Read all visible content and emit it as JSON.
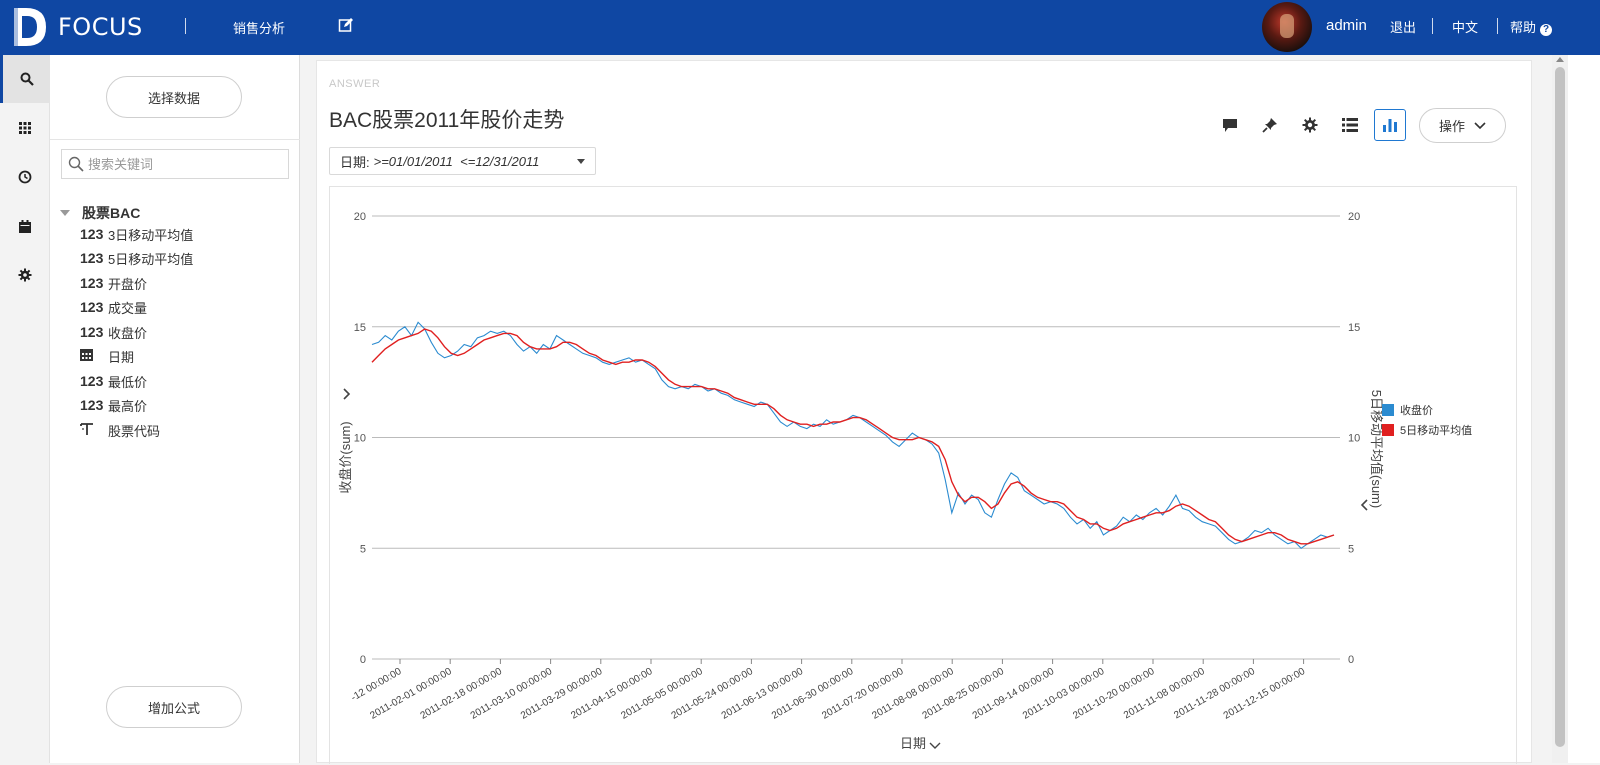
{
  "header": {
    "logo_text": "FOCUS",
    "nav_sales": "销售分析",
    "user": "admin",
    "logout": "退出",
    "language": "中文",
    "help": "帮助"
  },
  "sidebar": {
    "select_data": "选择数据",
    "search_placeholder": "搜索关键词",
    "group": "股票BAC",
    "fields": [
      {
        "type": "123",
        "name": "3日移动平均值"
      },
      {
        "type": "123",
        "name": "5日移动平均值"
      },
      {
        "type": "123",
        "name": "开盘价"
      },
      {
        "type": "123",
        "name": "成交量"
      },
      {
        "type": "123",
        "name": "收盘价"
      },
      {
        "type": "date",
        "name": "日期"
      },
      {
        "type": "123",
        "name": "最低价"
      },
      {
        "type": "123",
        "name": "最高价"
      },
      {
        "type": "text",
        "name": "股票代码"
      }
    ],
    "add_formula": "增加公式"
  },
  "answer": {
    "tag": "ANSWER",
    "title": "BAC股票2011年股价走势",
    "ops_label": "操作",
    "filter_label": "日期:",
    "filter_value": ">=01/01/2011  <=12/31/2011"
  },
  "colors": {
    "header_bg": "#0f47a3",
    "series_close": "#2b8bd0",
    "series_ma5": "#e02020",
    "accent": "#1f78d1"
  },
  "chart_data": {
    "type": "line",
    "title": "BAC股票2011年股价走势",
    "xlabel": "日期",
    "ylabel": "收盘价(sum)",
    "y2label": "5日移动平均值(sum)",
    "ylim": [
      0,
      20
    ],
    "yticks": [
      0,
      5,
      10,
      15,
      20
    ],
    "grid": true,
    "legend_position": "right",
    "x_tick_labels": [
      "-12 00:00:00",
      "2011-02-01 00:00:00",
      "2011-02-18 00:00:00",
      "2011-03-10 00:00:00",
      "2011-03-29 00:00:00",
      "2011-04-15 00:00:00",
      "2011-05-05 00:00:00",
      "2011-05-24 00:00:00",
      "2011-06-13 00:00:00",
      "2011-06-30 00:00:00",
      "2011-07-20 00:00:00",
      "2011-08-08 00:00:00",
      "2011-08-25 00:00:00",
      "2011-09-14 00:00:00",
      "2011-10-03 00:00:00",
      "2011-10-20 00:00:00",
      "2011-11-08 00:00:00",
      "2011-11-28 00:00:00",
      "2011-12-15 00:00:00"
    ],
    "series": [
      {
        "name": "收盘价",
        "color": "#2b8bd0",
        "values": [
          14.2,
          14.3,
          14.6,
          14.4,
          14.8,
          15.0,
          14.6,
          15.2,
          14.9,
          14.3,
          13.8,
          13.6,
          13.7,
          13.9,
          14.2,
          14.1,
          14.5,
          14.6,
          14.8,
          14.7,
          14.8,
          14.6,
          14.2,
          13.9,
          14.1,
          13.8,
          14.2,
          14.0,
          14.6,
          14.4,
          14.2,
          14.0,
          13.8,
          13.7,
          13.6,
          13.4,
          13.3,
          13.4,
          13.5,
          13.6,
          13.4,
          13.5,
          13.3,
          13.1,
          12.6,
          12.3,
          12.2,
          12.3,
          12.2,
          12.4,
          12.3,
          12.1,
          12.2,
          12.0,
          11.9,
          11.7,
          11.6,
          11.5,
          11.4,
          11.6,
          11.5,
          11.1,
          10.7,
          10.5,
          10.7,
          10.5,
          10.4,
          10.6,
          10.5,
          10.8,
          10.6,
          10.7,
          10.8,
          11.0,
          10.9,
          10.7,
          10.5,
          10.3,
          10.1,
          9.8,
          9.6,
          9.9,
          10.2,
          10.0,
          9.9,
          9.7,
          9.3,
          8.1,
          6.6,
          7.5,
          7.0,
          7.4,
          7.2,
          6.6,
          6.4,
          7.2,
          7.9,
          8.4,
          8.2,
          7.6,
          7.4,
          7.2,
          7.0,
          7.1,
          7.0,
          6.8,
          6.4,
          6.1,
          6.3,
          5.9,
          6.2,
          5.6,
          5.8,
          6.0,
          6.4,
          6.2,
          6.5,
          6.3,
          6.6,
          6.8,
          6.5,
          6.9,
          7.4,
          6.8,
          6.7,
          6.4,
          6.2,
          6.1,
          6.0,
          5.7,
          5.4,
          5.2,
          5.3,
          5.5,
          5.8,
          5.7,
          5.9,
          5.6,
          5.4,
          5.2,
          5.3,
          5.0,
          5.2,
          5.4,
          5.6,
          5.5,
          5.6
        ]
      },
      {
        "name": "5日移动平均值",
        "color": "#e02020",
        "values": [
          13.4,
          13.7,
          14.0,
          14.2,
          14.4,
          14.5,
          14.6,
          14.7,
          14.9,
          14.8,
          14.5,
          14.1,
          13.8,
          13.7,
          13.8,
          14.0,
          14.2,
          14.4,
          14.5,
          14.6,
          14.7,
          14.7,
          14.6,
          14.3,
          14.1,
          14.0,
          14.0,
          14.0,
          14.1,
          14.3,
          14.3,
          14.2,
          14.0,
          13.8,
          13.7,
          13.5,
          13.4,
          13.3,
          13.4,
          13.4,
          13.5,
          13.5,
          13.4,
          13.2,
          12.9,
          12.6,
          12.4,
          12.3,
          12.3,
          12.3,
          12.3,
          12.2,
          12.2,
          12.1,
          12.0,
          11.8,
          11.7,
          11.6,
          11.5,
          11.5,
          11.5,
          11.3,
          11.0,
          10.8,
          10.7,
          10.6,
          10.6,
          10.5,
          10.6,
          10.6,
          10.7,
          10.7,
          10.8,
          10.9,
          10.9,
          10.8,
          10.6,
          10.4,
          10.2,
          10.0,
          9.9,
          9.9,
          9.9,
          10.0,
          9.9,
          9.8,
          9.6,
          9.0,
          8.0,
          7.4,
          7.1,
          7.3,
          7.3,
          7.1,
          6.8,
          7.0,
          7.5,
          7.9,
          8.0,
          7.8,
          7.5,
          7.3,
          7.2,
          7.1,
          7.1,
          7.0,
          6.7,
          6.4,
          6.3,
          6.1,
          6.1,
          5.9,
          5.8,
          5.9,
          6.1,
          6.2,
          6.3,
          6.4,
          6.5,
          6.6,
          6.6,
          6.7,
          6.9,
          7.0,
          6.9,
          6.7,
          6.5,
          6.3,
          6.2,
          5.9,
          5.6,
          5.4,
          5.3,
          5.4,
          5.5,
          5.6,
          5.7,
          5.7,
          5.6,
          5.4,
          5.3,
          5.2,
          5.2,
          5.3,
          5.4,
          5.5,
          5.6
        ]
      }
    ]
  }
}
